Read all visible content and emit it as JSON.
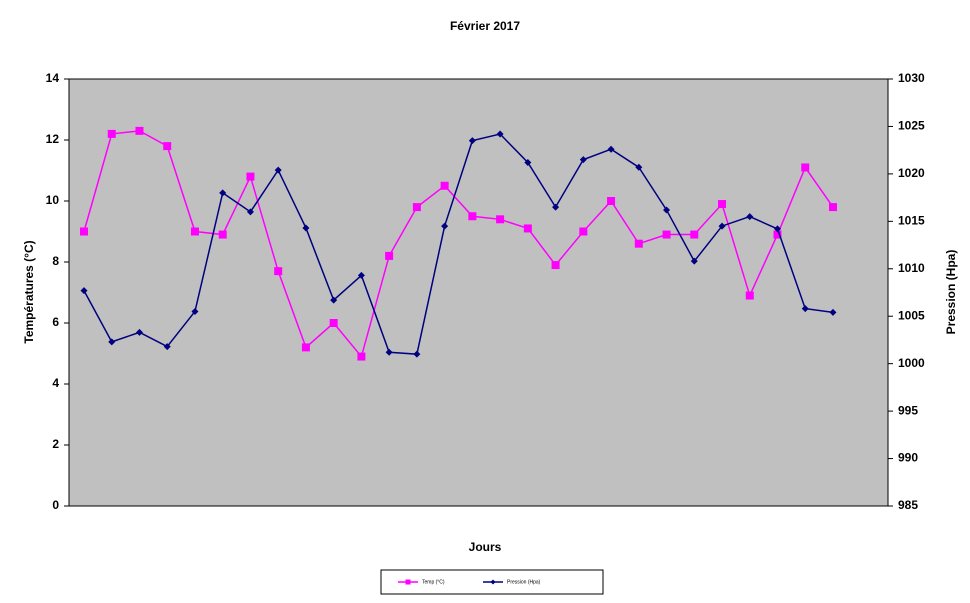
{
  "chart_data": {
    "type": "line",
    "title": "Février 2017",
    "x_label": "Jours",
    "y_label": "Températures (°C)",
    "y2_label": "Pression (Hpa)",
    "categories": [
      null,
      null,
      null,
      null,
      null,
      null,
      null,
      null,
      null,
      null,
      null,
      null,
      null,
      null,
      null,
      null,
      null,
      null,
      null,
      null,
      null,
      null,
      null,
      null,
      null,
      null,
      null,
      null
    ],
    "series": [
      {
        "name": "Temp (°C)",
        "color": "#ff00ff",
        "marker": "square",
        "values": [
          9.0,
          12.2,
          12.3,
          11.8,
          9.0,
          8.9,
          10.8,
          7.7,
          5.2,
          6.0,
          4.9,
          8.2,
          9.8,
          10.5,
          9.5,
          9.4,
          9.1,
          7.9,
          9.0,
          10.0,
          8.6,
          8.9,
          8.9,
          9.9,
          6.9,
          8.9,
          11.1,
          9.8
        ]
      },
      {
        "name": "Pression (Hpa)",
        "color": "#000080",
        "marker": "diamond",
        "axis": "y2",
        "values": [
          1007.7,
          1002.3,
          1003.3,
          1001.8,
          1005.5,
          1018.0,
          1016.0,
          1020.4,
          1014.3,
          1006.7,
          1009.3,
          1001.2,
          1001.0,
          1014.5,
          1023.5,
          1024.2,
          1021.2,
          1016.5,
          1021.5,
          1022.6,
          1020.7,
          1016.2,
          1010.8,
          1014.5,
          1015.5,
          1014.2,
          1005.8,
          1005.4
        ]
      }
    ],
    "ylim": [
      0,
      14
    ],
    "yticks": [
      0,
      2,
      4,
      6,
      8,
      10,
      12,
      14
    ],
    "y2lim": [
      985,
      1030
    ],
    "y2ticks": [
      985,
      990,
      995,
      1000,
      1005,
      1010,
      1015,
      1020,
      1025,
      1030
    ],
    "plot_background": "#c0c0c0",
    "legend": "bottom"
  }
}
